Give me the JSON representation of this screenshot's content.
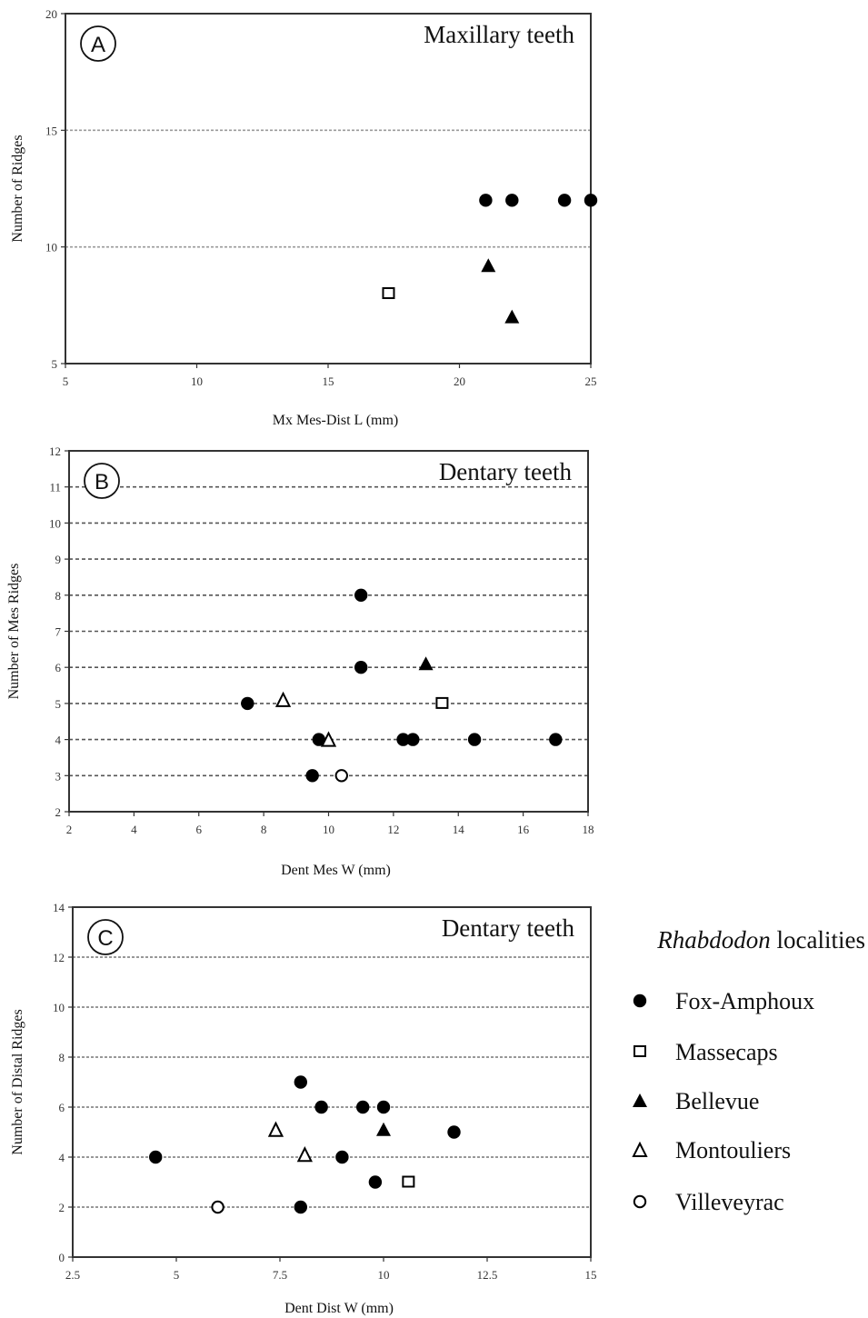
{
  "colors": {
    "marker": "#000000",
    "grid": "#8a8a8a",
    "frame": "#333333",
    "background": "#ffffff"
  },
  "legend": {
    "title_italic": "Rhabdodon",
    "title_rest": " localities",
    "items": [
      {
        "key": "fox",
        "label": "Fox-Amphoux",
        "marker": "filled-circle"
      },
      {
        "key": "mas",
        "label": "Massecaps",
        "marker": "open-square"
      },
      {
        "key": "bel",
        "label": "Bellevue",
        "marker": "filled-triangle"
      },
      {
        "key": "mon",
        "label": "Montouliers",
        "marker": "open-triangle"
      },
      {
        "key": "vil",
        "label": "Villeveyrac",
        "marker": "open-circle"
      }
    ]
  },
  "chart_data": [
    {
      "type": "scatter",
      "letter": "A",
      "title": "Maxillary teeth",
      "xlabel": "Mx Mes-Dist L (mm)",
      "ylabel": "Number of Ridges",
      "xlim": [
        5,
        25
      ],
      "ylim": [
        5,
        20
      ],
      "xticks": [
        5,
        10,
        15,
        20,
        25
      ],
      "yticks": [
        5,
        10,
        15,
        20
      ],
      "grid": true,
      "series": [
        {
          "key": "fox",
          "name": "Fox-Amphoux",
          "points": [
            [
              21,
              12
            ],
            [
              22,
              12
            ],
            [
              24,
              12
            ],
            [
              25,
              12
            ]
          ]
        },
        {
          "key": "mas",
          "name": "Massecaps",
          "points": [
            [
              17.3,
              8
            ]
          ]
        },
        {
          "key": "bel",
          "name": "Bellevue",
          "points": [
            [
              21.1,
              9.2
            ],
            [
              22,
              7
            ]
          ]
        }
      ]
    },
    {
      "type": "scatter",
      "letter": "B",
      "title": "Dentary teeth",
      "xlabel": "Dent Mes W (mm)",
      "ylabel": "Number of Mes Ridges",
      "xlim": [
        2,
        18
      ],
      "ylim": [
        2,
        12
      ],
      "xticks": [
        2,
        4,
        6,
        8,
        10,
        12,
        14,
        16,
        18
      ],
      "yticks": [
        2,
        3,
        4,
        5,
        6,
        7,
        8,
        9,
        10,
        11,
        12
      ],
      "grid": true,
      "series": [
        {
          "key": "fox",
          "name": "Fox-Amphoux",
          "points": [
            [
              11,
              8
            ],
            [
              11,
              6
            ],
            [
              7.5,
              5
            ],
            [
              9.7,
              4
            ],
            [
              12.3,
              4
            ],
            [
              12.6,
              4
            ],
            [
              14.5,
              4
            ],
            [
              17,
              4
            ],
            [
              9.5,
              3
            ]
          ]
        },
        {
          "key": "mas",
          "name": "Massecaps",
          "points": [
            [
              13.5,
              5
            ]
          ]
        },
        {
          "key": "bel",
          "name": "Bellevue",
          "points": [
            [
              13,
              6.1
            ]
          ]
        },
        {
          "key": "mon",
          "name": "Montouliers",
          "points": [
            [
              8.6,
              5.1
            ],
            [
              10,
              4
            ]
          ]
        },
        {
          "key": "vil",
          "name": "Villeveyrac",
          "points": [
            [
              10.4,
              3
            ]
          ]
        }
      ]
    },
    {
      "type": "scatter",
      "letter": "C",
      "title": "Dentary teeth",
      "xlabel": "Dent Dist W (mm)",
      "ylabel": "Number of Distal Ridges",
      "xlim": [
        2.5,
        15
      ],
      "ylim": [
        0,
        14
      ],
      "xticks": [
        2.5,
        5,
        7.5,
        10,
        12.5,
        15
      ],
      "yticks": [
        0,
        2,
        4,
        6,
        8,
        10,
        12,
        14
      ],
      "grid": true,
      "series": [
        {
          "key": "fox",
          "name": "Fox-Amphoux",
          "points": [
            [
              8,
              7
            ],
            [
              8.5,
              6
            ],
            [
              9.5,
              6
            ],
            [
              10,
              6
            ],
            [
              11.7,
              5
            ],
            [
              4.5,
              4
            ],
            [
              9,
              4
            ],
            [
              9.8,
              3
            ],
            [
              8,
              2
            ]
          ]
        },
        {
          "key": "mas",
          "name": "Massecaps",
          "points": [
            [
              10.6,
              3
            ]
          ]
        },
        {
          "key": "bel",
          "name": "Bellevue",
          "points": [
            [
              10,
              5.1
            ]
          ]
        },
        {
          "key": "mon",
          "name": "Montouliers",
          "points": [
            [
              7.4,
              5.1
            ],
            [
              8.1,
              4.1
            ]
          ]
        },
        {
          "key": "vil",
          "name": "Villeveyrac",
          "points": [
            [
              6,
              2
            ]
          ]
        }
      ]
    }
  ]
}
